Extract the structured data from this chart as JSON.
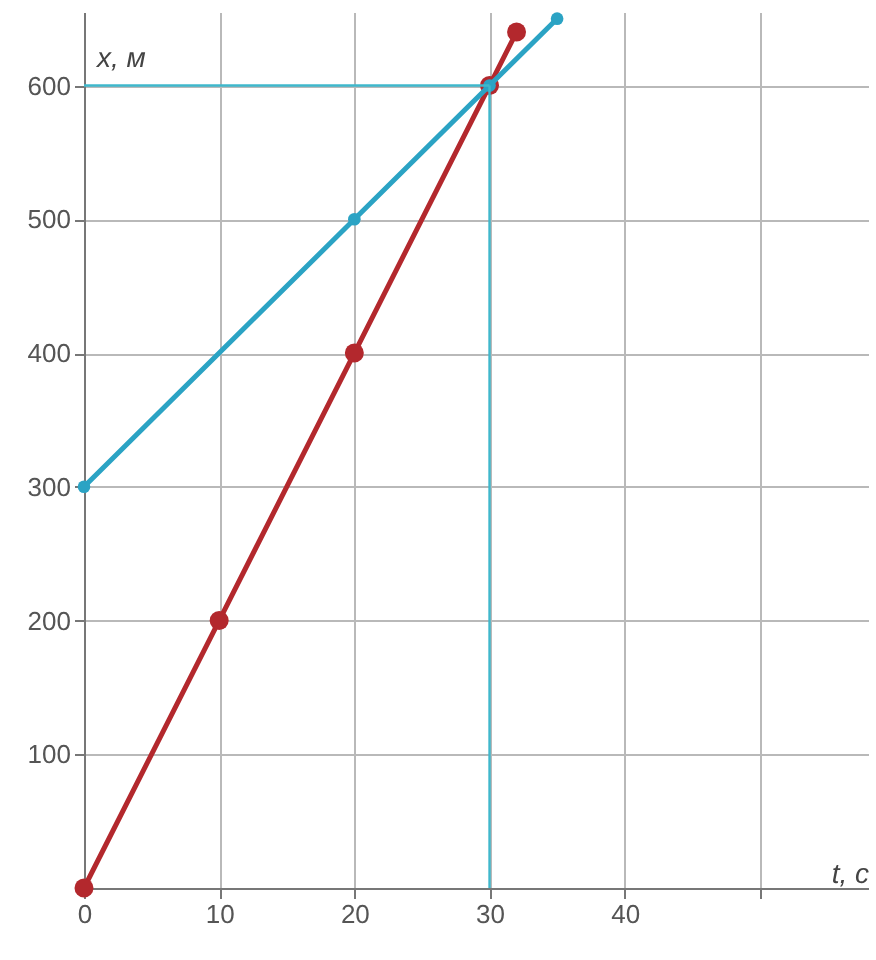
{
  "chart_data": {
    "type": "line",
    "xlabel": "t, с",
    "ylabel": "x, м",
    "series": [
      {
        "x": [
          0,
          10,
          20,
          30,
          32
        ],
        "values": [
          0,
          200,
          400,
          600,
          640
        ],
        "color": "#b3282d"
      },
      {
        "x": [
          0,
          20,
          30,
          35
        ],
        "values": [
          300,
          500,
          600,
          650
        ],
        "color": "#2ba3c4"
      }
    ],
    "xlim": [
      0,
      58
    ],
    "ylim": [
      0,
      655
    ],
    "xticks": [
      0,
      10,
      20,
      30,
      40,
      {
        "value": 50,
        "label": null
      }
    ],
    "yticks": [
      100,
      200,
      300,
      400,
      500,
      600
    ],
    "ref_lines": [
      {
        "axis": "x",
        "value": 30,
        "color": "#3fb8cc"
      },
      {
        "axis": "y",
        "value": 600,
        "color": "#3fb8cc"
      }
    ],
    "grid": true,
    "marker": "circle",
    "line_style": "solid"
  }
}
